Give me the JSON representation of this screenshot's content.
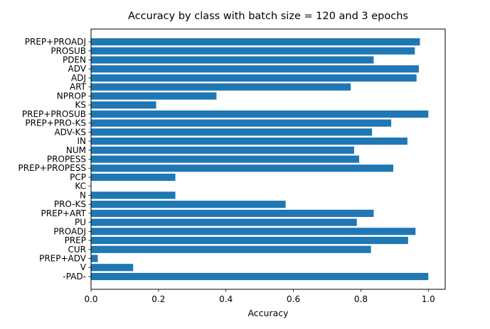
{
  "chart_data": {
    "type": "bar",
    "orientation": "horizontal",
    "title": "Accuracy by class with batch size = 120 and 3 epochs",
    "xlabel": "Accuracy",
    "ylabel": "",
    "xlim": [
      0,
      1.05
    ],
    "xticks": [
      "0.0",
      "0.2",
      "0.4",
      "0.6",
      "0.8",
      "1.0"
    ],
    "grid": false,
    "bar_color": "#1f77b4",
    "categories": [
      "-PAD-",
      "V",
      "PREP+ADV",
      "CUR",
      "PREP",
      "PROADJ",
      "PU",
      "PREP+ART",
      "PRO-KS",
      "N",
      "KC",
      "PCP",
      "PREP+PROPESS",
      "PROPESS",
      "NUM",
      "IN",
      "ADV-KS",
      "PREP+PRO-KS",
      "PREP+PROSUB",
      "KS",
      "NPROP",
      "ART",
      "ADJ",
      "ADV",
      "PDEN",
      "PROSUB",
      "PREP+PROADJ"
    ],
    "values": [
      1.0,
      0.125,
      0.02,
      0.83,
      0.94,
      0.962,
      0.788,
      0.838,
      0.577,
      0.25,
      0.0,
      0.25,
      0.896,
      0.795,
      0.78,
      0.938,
      0.833,
      0.89,
      1.0,
      0.193,
      0.372,
      0.77,
      0.965,
      0.972,
      0.838,
      0.96,
      0.975
    ]
  }
}
